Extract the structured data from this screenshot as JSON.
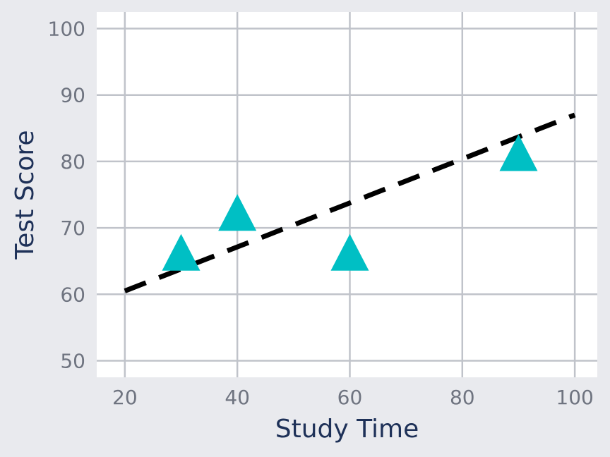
{
  "chart_data": {
    "type": "scatter",
    "xlabel": "Study Time",
    "ylabel": "Test Score",
    "xlim": [
      15,
      104
    ],
    "ylim": [
      47.5,
      102.5
    ],
    "xticks": [
      20,
      40,
      60,
      80,
      100
    ],
    "yticks": [
      50,
      60,
      70,
      80,
      90,
      100
    ],
    "grid": true,
    "series": [
      {
        "marker": "triangle",
        "color": "#00bfc4",
        "points": [
          {
            "x": 30,
            "y": 66
          },
          {
            "x": 40,
            "y": 72
          },
          {
            "x": 60,
            "y": 66
          },
          {
            "x": 90,
            "y": 81
          }
        ]
      }
    ],
    "trendline": {
      "style": "dashed",
      "color": "#000000",
      "points": [
        {
          "x": 20,
          "y": 60.5
        },
        {
          "x": 100,
          "y": 87
        }
      ]
    }
  },
  "colors": {
    "page_background": "#e9eaee",
    "plot_background": "#ffffff",
    "grid": "#c0c3ca",
    "tick_text": "#6f7480",
    "axis_title": "#1e3158"
  }
}
